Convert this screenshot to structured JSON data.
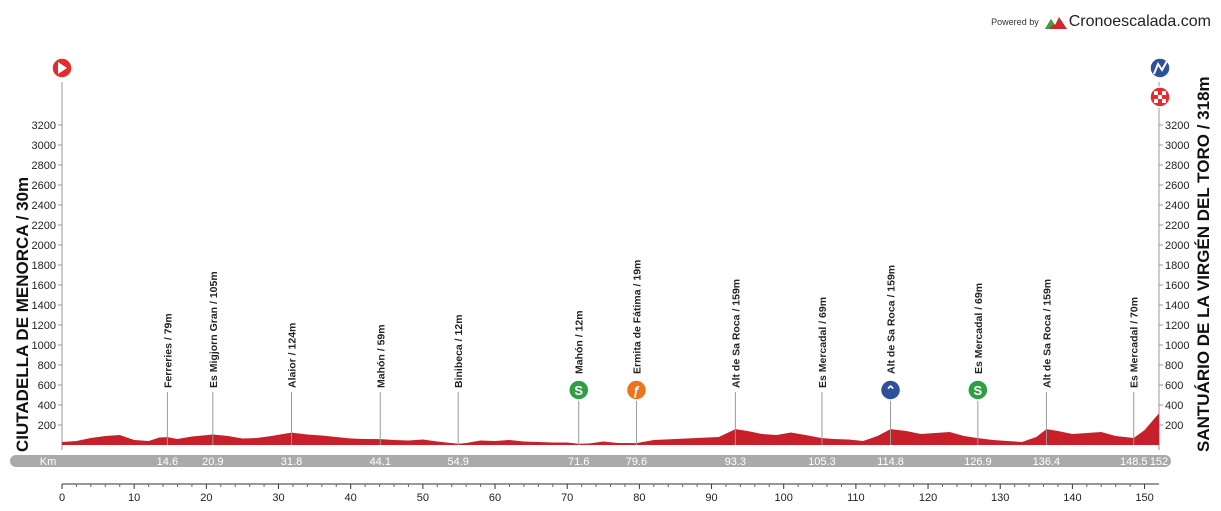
{
  "brand": {
    "powered_by": "Powered by",
    "name": "Cronoescalada.com"
  },
  "start_label": "CIUTADELLA DE MENORCA / 30m",
  "finish_label": "SANTUÁRIO DE LA VIRGÉN DEL TORO / 318m",
  "km_label": "Km",
  "colors": {
    "profile_fill": "#c8202a",
    "bar": "#aaaaaa",
    "sprint": "#2f9e44",
    "climb": "#2e4f9c",
    "feed": "#f0731c",
    "start": "#e52b2b"
  },
  "chart_data": {
    "type": "area",
    "xlabel": "Km",
    "ylabel": "",
    "xlim": [
      0,
      152
    ],
    "ylim": [
      0,
      3300
    ],
    "x_ticks": [
      0,
      10,
      20,
      30,
      40,
      50,
      60,
      70,
      80,
      90,
      100,
      110,
      120,
      130,
      140,
      150
    ],
    "y_ticks": [
      200,
      400,
      600,
      800,
      1000,
      1200,
      1400,
      1600,
      1800,
      2000,
      2200,
      2400,
      2600,
      2800,
      3000,
      3200
    ],
    "total_distance": 152,
    "elevation": [
      {
        "x": 0,
        "y": 30
      },
      {
        "x": 2,
        "y": 40
      },
      {
        "x": 4,
        "y": 70
      },
      {
        "x": 6,
        "y": 90
      },
      {
        "x": 8,
        "y": 100
      },
      {
        "x": 10,
        "y": 50
      },
      {
        "x": 12,
        "y": 40
      },
      {
        "x": 13.5,
        "y": 75
      },
      {
        "x": 14.6,
        "y": 79
      },
      {
        "x": 16,
        "y": 60
      },
      {
        "x": 18,
        "y": 85
      },
      {
        "x": 20.9,
        "y": 105
      },
      {
        "x": 23,
        "y": 90
      },
      {
        "x": 25,
        "y": 65
      },
      {
        "x": 27,
        "y": 70
      },
      {
        "x": 29,
        "y": 90
      },
      {
        "x": 31.8,
        "y": 124
      },
      {
        "x": 34,
        "y": 105
      },
      {
        "x": 36,
        "y": 95
      },
      {
        "x": 38,
        "y": 80
      },
      {
        "x": 40,
        "y": 65
      },
      {
        "x": 42,
        "y": 60
      },
      {
        "x": 44.1,
        "y": 59
      },
      {
        "x": 46,
        "y": 50
      },
      {
        "x": 48,
        "y": 45
      },
      {
        "x": 50,
        "y": 55
      },
      {
        "x": 52,
        "y": 35
      },
      {
        "x": 54.9,
        "y": 12
      },
      {
        "x": 56,
        "y": 20
      },
      {
        "x": 58,
        "y": 45
      },
      {
        "x": 60,
        "y": 40
      },
      {
        "x": 62,
        "y": 50
      },
      {
        "x": 64,
        "y": 35
      },
      {
        "x": 66,
        "y": 30
      },
      {
        "x": 68,
        "y": 25
      },
      {
        "x": 70,
        "y": 25
      },
      {
        "x": 71.6,
        "y": 12
      },
      {
        "x": 73,
        "y": 15
      },
      {
        "x": 75,
        "y": 35
      },
      {
        "x": 77,
        "y": 20
      },
      {
        "x": 79.6,
        "y": 19
      },
      {
        "x": 82,
        "y": 50
      },
      {
        "x": 85,
        "y": 60
      },
      {
        "x": 88,
        "y": 70
      },
      {
        "x": 91,
        "y": 80
      },
      {
        "x": 93.3,
        "y": 159
      },
      {
        "x": 95,
        "y": 140
      },
      {
        "x": 97,
        "y": 110
      },
      {
        "x": 99,
        "y": 100
      },
      {
        "x": 101,
        "y": 125
      },
      {
        "x": 103,
        "y": 100
      },
      {
        "x": 105.3,
        "y": 69
      },
      {
        "x": 107,
        "y": 60
      },
      {
        "x": 109,
        "y": 55
      },
      {
        "x": 111,
        "y": 40
      },
      {
        "x": 113,
        "y": 90
      },
      {
        "x": 114.8,
        "y": 159
      },
      {
        "x": 117,
        "y": 140
      },
      {
        "x": 119,
        "y": 110
      },
      {
        "x": 121,
        "y": 120
      },
      {
        "x": 123,
        "y": 130
      },
      {
        "x": 125,
        "y": 90
      },
      {
        "x": 126.9,
        "y": 69
      },
      {
        "x": 129,
        "y": 50
      },
      {
        "x": 131,
        "y": 40
      },
      {
        "x": 133,
        "y": 30
      },
      {
        "x": 135,
        "y": 80
      },
      {
        "x": 136.4,
        "y": 159
      },
      {
        "x": 138,
        "y": 140
      },
      {
        "x": 140,
        "y": 110
      },
      {
        "x": 142,
        "y": 120
      },
      {
        "x": 144,
        "y": 130
      },
      {
        "x": 146,
        "y": 90
      },
      {
        "x": 148.5,
        "y": 70
      },
      {
        "x": 150,
        "y": 150
      },
      {
        "x": 152,
        "y": 318
      }
    ],
    "waypoints": [
      {
        "km": "14.6",
        "label": "Ferreries / 79m",
        "icon": ""
      },
      {
        "km": "20.9",
        "label": "Es Migjorn Gran / 105m",
        "icon": ""
      },
      {
        "km": "31.8",
        "label": "Alaior / 124m",
        "icon": ""
      },
      {
        "km": "44.1",
        "label": "Mahón / 59m",
        "icon": ""
      },
      {
        "km": "54.9",
        "label": "Binibeca / 12m",
        "icon": ""
      },
      {
        "km": "71.6",
        "label": "Mahón / 12m",
        "icon": "sprint-icon"
      },
      {
        "km": "79.6",
        "label": "Ermita de Fátima / 19m",
        "icon": "feed-zone-icon"
      },
      {
        "km": "93.3",
        "label": "Alt de Sa Roca / 159m",
        "icon": ""
      },
      {
        "km": "105.3",
        "label": "Es Mercadal / 69m",
        "icon": ""
      },
      {
        "km": "114.8",
        "label": "Alt de Sa Roca / 159m",
        "icon": "climb-icon"
      },
      {
        "km": "126.9",
        "label": "Es Mercadal / 69m",
        "icon": "sprint-icon"
      },
      {
        "km": "136.4",
        "label": "Alt de Sa Roca / 159m",
        "icon": ""
      },
      {
        "km": "148.5",
        "label": "Es Mercadal / 70m",
        "icon": ""
      },
      {
        "km": "152",
        "label": "",
        "icon": ""
      }
    ]
  }
}
